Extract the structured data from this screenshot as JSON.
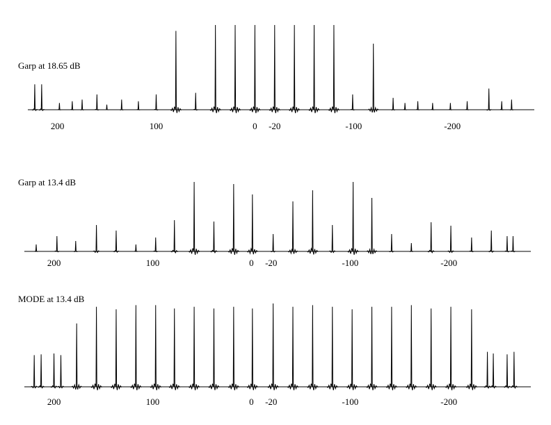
{
  "chart_data": [
    {
      "type": "spectrum",
      "title": "Garp at 18.65 dB",
      "color": "#000000",
      "x": [
        223,
        216,
        198,
        185,
        175,
        160,
        150,
        135,
        118,
        100,
        80,
        60,
        40,
        20,
        0,
        -20,
        -40,
        -60,
        -80,
        -99,
        -120,
        -140,
        -152,
        -165,
        -180,
        -198,
        -215,
        -237,
        -250,
        -260
      ],
      "values": [
        30,
        30,
        8,
        10,
        12,
        18,
        6,
        12,
        10,
        18,
        93,
        20,
        100,
        100,
        100,
        100,
        100,
        100,
        100,
        18,
        78,
        14,
        8,
        10,
        8,
        8,
        10,
        25,
        10,
        12
      ],
      "xlim": [
        230,
        -283
      ],
      "ylim": [
        0,
        100
      ],
      "xticks": [
        200,
        100,
        0,
        -20,
        -100,
        -200
      ]
    },
    {
      "type": "spectrum",
      "title": "Garp at 13.4 dB",
      "color": "#000000",
      "x": [
        218,
        197,
        178,
        157,
        137,
        117,
        97,
        78,
        58,
        38,
        18,
        -1,
        -22,
        -42,
        -62,
        -82,
        -103,
        -122,
        -142,
        -162,
        -182,
        -202,
        -223,
        -243,
        -259,
        -265
      ],
      "values": [
        10,
        22,
        15,
        38,
        30,
        10,
        20,
        45,
        100,
        43,
        97,
        82,
        25,
        72,
        88,
        38,
        100,
        77,
        25,
        12,
        42,
        37,
        20,
        30,
        22,
        22
      ],
      "xlim": [
        230,
        -283
      ],
      "ylim": [
        0,
        100
      ],
      "xticks": [
        200,
        100,
        0,
        -20,
        -100,
        -200
      ]
    },
    {
      "type": "spectrum",
      "title": "MODE at 13.4 dB",
      "color": "#000000",
      "x": [
        220,
        213,
        200,
        193,
        177,
        157,
        137,
        117,
        97,
        78,
        58,
        38,
        18,
        -1,
        -22,
        -42,
        -62,
        -82,
        -102,
        -122,
        -142,
        -162,
        -182,
        -202,
        -223,
        -239,
        -245,
        -259,
        -266
      ],
      "values": [
        38,
        39,
        40,
        38,
        76,
        96,
        93,
        98,
        98,
        94,
        96,
        94,
        96,
        94,
        100,
        96,
        98,
        96,
        93,
        96,
        96,
        98,
        94,
        96,
        93,
        42,
        40,
        39,
        42
      ],
      "xlim": [
        230,
        -283
      ],
      "ylim": [
        0,
        100
      ],
      "xticks": [
        200,
        100,
        0,
        -20,
        -100,
        -200
      ]
    }
  ]
}
